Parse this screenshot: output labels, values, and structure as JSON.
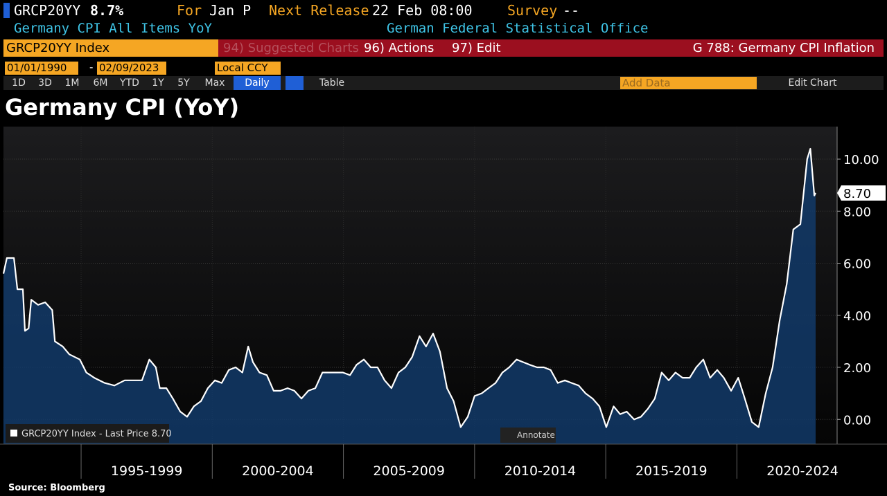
{
  "header": {
    "ticker": "GRCP20YY",
    "last": "8.7%",
    "for_label": "For",
    "for_value": "Jan P",
    "release_label": "Next Release",
    "release_value": "22 Feb 08:00",
    "survey_label": "Survey",
    "survey_value": "--",
    "description": "Germany CPI All Items YoY",
    "source_agency": "German Federal Statistical Office"
  },
  "toolbar": {
    "security": "GRCP20YY Index",
    "suggested": "94) Suggested Charts",
    "actions": "96) Actions",
    "edit": "97) Edit",
    "function": "G 788: Germany CPI Inflation",
    "start_date": "01/01/1990",
    "dash": "-",
    "end_date": "02/09/2023",
    "currency": "Local CCY",
    "ranges": [
      "1D",
      "3D",
      "1M",
      "6M",
      "YTD",
      "1Y",
      "5Y",
      "Max"
    ],
    "frequency": "Daily",
    "table": "Table",
    "add_data": "Add Data",
    "edit_chart": "Edit Chart"
  },
  "chart_data": {
    "type": "area",
    "title": "Germany CPI (YoY)",
    "annotate": "Annotate",
    "source": "Source: Bloomberg",
    "x": [
      1992.04,
      1992.17,
      1992.44,
      1992.57,
      1992.78,
      1992.86,
      1993.0,
      1993.1,
      1993.36,
      1993.63,
      1993.9,
      1994.0,
      1994.3,
      1994.55,
      1994.95,
      1995.2,
      1995.5,
      1995.9,
      1996.27,
      1996.66,
      1997.06,
      1997.32,
      1997.6,
      1997.85,
      1998.0,
      1998.25,
      1998.5,
      1998.78,
      1999.04,
      1999.3,
      1999.57,
      1999.83,
      2000.1,
      2000.36,
      2000.63,
      2000.89,
      2001.15,
      2001.37,
      2001.55,
      2001.8,
      2002.08,
      2002.34,
      2002.6,
      2002.87,
      2003.13,
      2003.4,
      2003.66,
      2003.93,
      2004.2,
      2004.45,
      2004.72,
      2004.98,
      2005.25,
      2005.5,
      2005.78,
      2006.04,
      2006.3,
      2006.57,
      2006.83,
      2007.1,
      2007.36,
      2007.62,
      2007.9,
      2008.15,
      2008.42,
      2008.68,
      2008.95,
      2009.2,
      2009.47,
      2009.74,
      2010.0,
      2010.27,
      2010.53,
      2010.8,
      2011.06,
      2011.32,
      2011.6,
      2011.85,
      2012.1,
      2012.38,
      2012.64,
      2012.9,
      2013.17,
      2013.44,
      2013.7,
      2013.97,
      2014.23,
      2014.5,
      2014.76,
      2015.02,
      2015.3,
      2015.55,
      2015.8,
      2016.08,
      2016.34,
      2016.6,
      2016.87,
      2017.13,
      2017.4,
      2017.66,
      2017.93,
      2018.2,
      2018.45,
      2018.72,
      2018.98,
      2019.25,
      2019.5,
      2019.78,
      2020.05,
      2020.3,
      2020.57,
      2020.83,
      2021.1,
      2021.36,
      2021.63,
      2021.9,
      2022.15,
      2022.42,
      2022.68,
      2022.8,
      2022.95,
      2023.0
    ],
    "series": [
      {
        "name": "GRCP20YY Index - Last Price 8.70",
        "color": "#ffffff",
        "values": [
          5.6,
          6.2,
          6.2,
          5.0,
          5.0,
          3.4,
          3.5,
          4.6,
          4.4,
          4.5,
          4.2,
          3.0,
          2.8,
          2.5,
          2.3,
          1.8,
          1.6,
          1.4,
          1.3,
          1.5,
          1.5,
          1.5,
          2.3,
          2.0,
          1.2,
          1.2,
          0.8,
          0.3,
          0.1,
          0.5,
          0.7,
          1.2,
          1.5,
          1.4,
          1.9,
          2.0,
          1.8,
          2.8,
          2.2,
          1.8,
          1.7,
          1.1,
          1.1,
          1.2,
          1.1,
          0.8,
          1.1,
          1.2,
          1.8,
          1.8,
          1.8,
          1.8,
          1.7,
          2.1,
          2.3,
          2.0,
          2.0,
          1.5,
          1.2,
          1.8,
          2.0,
          2.4,
          3.2,
          2.8,
          3.3,
          2.6,
          1.2,
          0.7,
          -0.3,
          0.1,
          0.9,
          1.0,
          1.2,
          1.4,
          1.8,
          2.0,
          2.3,
          2.2,
          2.1,
          2.0,
          2.0,
          1.9,
          1.4,
          1.5,
          1.4,
          1.3,
          1.0,
          0.8,
          0.5,
          -0.3,
          0.5,
          0.2,
          0.3,
          0.0,
          0.1,
          0.4,
          0.8,
          1.8,
          1.5,
          1.8,
          1.6,
          1.6,
          2.0,
          2.3,
          1.6,
          1.9,
          1.6,
          1.1,
          1.6,
          0.8,
          -0.1,
          -0.3,
          1.0,
          2.0,
          3.8,
          5.2,
          7.3,
          7.5,
          10.0,
          10.4,
          8.6,
          8.7
        ],
        "last_label": "8.70"
      }
    ],
    "xlim": [
      1992.04,
      2023.82
    ],
    "xticks": [
      {
        "value": 1995,
        "label": "1995-1999"
      },
      {
        "value": 2000,
        "label": "2000-2004"
      },
      {
        "value": 2005,
        "label": "2005-2009"
      },
      {
        "value": 2010,
        "label": "2010-2014"
      },
      {
        "value": 2015,
        "label": "2015-2019"
      },
      {
        "value": 2020,
        "label": "2020-2024"
      }
    ],
    "ylim": [
      -0.95,
      11.25
    ],
    "yticks": [
      {
        "value": 0,
        "label": "0.00"
      },
      {
        "value": 2,
        "label": "2.00"
      },
      {
        "value": 4,
        "label": "4.00"
      },
      {
        "value": 6,
        "label": "6.00"
      },
      {
        "value": 8,
        "label": "8.00"
      },
      {
        "value": 10,
        "label": "10.00"
      }
    ],
    "grid": true,
    "fill_color": "#123a68"
  }
}
